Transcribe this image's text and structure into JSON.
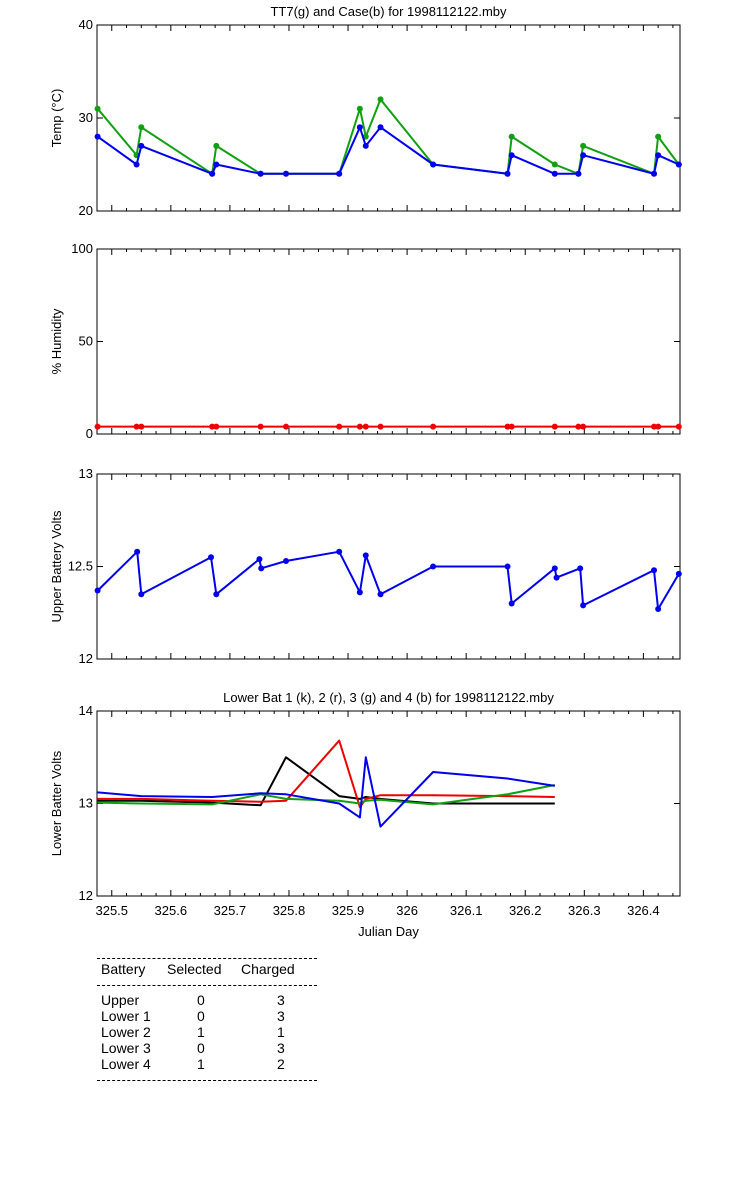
{
  "chart_data": [
    {
      "type": "line",
      "title": "TT7(g) and Case(b) for 1998112122.mby",
      "xlabel": "",
      "ylabel": "Temp  (°C)",
      "xlim": [
        325.475,
        326.462
      ],
      "ylim": [
        20,
        40
      ],
      "yticks": [
        20,
        30,
        40
      ],
      "grid": false,
      "series": [
        {
          "name": "TT7",
          "color": "#10a010",
          "x": [
            325.476,
            325.542,
            325.55,
            325.67,
            325.677,
            325.752,
            325.795,
            325.885,
            325.92,
            325.93,
            325.955,
            326.044,
            326.17,
            326.177,
            326.25,
            326.29,
            326.298,
            326.418,
            326.425,
            326.46
          ],
          "y": [
            31,
            26,
            29,
            24,
            27,
            24,
            24,
            24,
            31,
            28,
            32,
            25,
            24,
            28,
            25,
            24,
            27,
            24,
            28,
            25
          ]
        },
        {
          "name": "Case",
          "color": "#0000ee",
          "x": [
            325.476,
            325.542,
            325.55,
            325.67,
            325.677,
            325.752,
            325.795,
            325.885,
            325.92,
            325.93,
            325.955,
            326.044,
            326.17,
            326.177,
            326.25,
            326.29,
            326.298,
            326.418,
            326.425,
            326.46
          ],
          "y": [
            28,
            25,
            27,
            24,
            25,
            24,
            24,
            24,
            29,
            27,
            29,
            25,
            24,
            26,
            24,
            24,
            26,
            24,
            26,
            25
          ]
        }
      ]
    },
    {
      "type": "line",
      "title": "",
      "xlabel": "",
      "ylabel": "% Humidity",
      "xlim": [
        325.475,
        326.462
      ],
      "ylim": [
        0,
        100
      ],
      "yticks": [
        0,
        50,
        100
      ],
      "grid": false,
      "series": [
        {
          "color": "#ee0000",
          "x": [
            325.476,
            325.542,
            325.55,
            325.67,
            325.677,
            325.752,
            325.795,
            325.885,
            325.92,
            325.93,
            325.955,
            326.044,
            326.17,
            326.177,
            326.25,
            326.29,
            326.298,
            326.418,
            326.425,
            326.46
          ],
          "y": [
            4,
            4,
            4,
            4,
            4,
            4,
            4,
            4,
            4,
            4,
            4,
            4,
            4,
            4,
            4,
            4,
            4,
            4,
            4,
            4
          ]
        }
      ]
    },
    {
      "type": "line",
      "title": "",
      "xlabel": "",
      "ylabel": "Upper Battery Volts",
      "xlim": [
        325.475,
        326.462
      ],
      "ylim": [
        12,
        13
      ],
      "yticks": [
        12,
        12.5,
        13
      ],
      "grid": false,
      "series": [
        {
          "color": "#0000ee",
          "x": [
            325.476,
            325.543,
            325.55,
            325.668,
            325.677,
            325.75,
            325.753,
            325.795,
            325.885,
            325.92,
            325.93,
            325.955,
            326.044,
            326.17,
            326.177,
            326.25,
            326.253,
            326.293,
            326.298,
            326.418,
            326.425,
            326.46
          ],
          "y": [
            12.37,
            12.58,
            12.35,
            12.55,
            12.35,
            12.54,
            12.49,
            12.53,
            12.58,
            12.36,
            12.56,
            12.35,
            12.5,
            12.5,
            12.3,
            12.49,
            12.44,
            12.49,
            12.29,
            12.48,
            12.27,
            12.46
          ]
        }
      ]
    },
    {
      "type": "line",
      "title": "Lower Bat 1 (k), 2 (r), 3 (g) and 4 (b) for 1998112122.mby",
      "xlabel": "Julian Day",
      "ylabel": "Lower Batter Volts",
      "xlim": [
        325.475,
        326.462
      ],
      "ylim": [
        12,
        14
      ],
      "yticks": [
        12,
        13,
        14
      ],
      "xticks": [
        325.5,
        325.6,
        325.7,
        325.8,
        325.9,
        326,
        326.1,
        326.2,
        326.3,
        326.4
      ],
      "xticklabels": [
        "325.5",
        "325.6",
        "325.7",
        "325.8",
        "325.9",
        "326",
        "326.1",
        "326.2",
        "326.3",
        "326.4"
      ],
      "grid": false,
      "series": [
        {
          "color": "#000000",
          "x": [
            325.476,
            325.55,
            325.67,
            325.752,
            325.795,
            325.885,
            325.92,
            325.93,
            325.955,
            326.044,
            326.17,
            326.25
          ],
          "y": [
            13.03,
            13.03,
            13.01,
            12.98,
            13.5,
            13.08,
            13.05,
            13.07,
            13.05,
            13.0,
            13.0,
            13.0
          ]
        },
        {
          "color": "#ee0000",
          "x": [
            325.476,
            325.55,
            325.67,
            325.752,
            325.795,
            325.885,
            325.92,
            325.93,
            325.955,
            326.044,
            326.17,
            326.25
          ],
          "y": [
            13.05,
            13.05,
            13.03,
            13.02,
            13.03,
            13.68,
            12.96,
            13.05,
            13.09,
            13.09,
            13.08,
            13.07
          ]
        },
        {
          "color": "#10a010",
          "x": [
            325.476,
            325.55,
            325.67,
            325.752,
            325.795,
            325.885,
            325.92,
            325.93,
            325.955,
            326.044,
            326.17,
            326.25
          ],
          "y": [
            13.01,
            13.0,
            12.99,
            13.1,
            13.05,
            13.03,
            13.0,
            13.03,
            13.04,
            12.99,
            13.1,
            13.2
          ]
        },
        {
          "color": "#0000ee",
          "x": [
            325.476,
            325.55,
            325.67,
            325.752,
            325.795,
            325.885,
            325.92,
            325.93,
            325.955,
            326.044,
            326.17,
            326.25
          ],
          "y": [
            13.12,
            13.08,
            13.07,
            13.11,
            13.1,
            13.0,
            12.85,
            13.5,
            12.75,
            13.34,
            13.27,
            13.19
          ]
        }
      ]
    }
  ],
  "table": {
    "headers": [
      "Battery",
      "Selected",
      "Charged"
    ],
    "rows": [
      [
        "Upper",
        "0",
        "3"
      ],
      [
        "Lower 1",
        "0",
        "3"
      ],
      [
        "Lower 2",
        "1",
        "1"
      ],
      [
        "Lower 3",
        "0",
        "3"
      ],
      [
        "Lower 4",
        "1",
        "2"
      ]
    ]
  }
}
